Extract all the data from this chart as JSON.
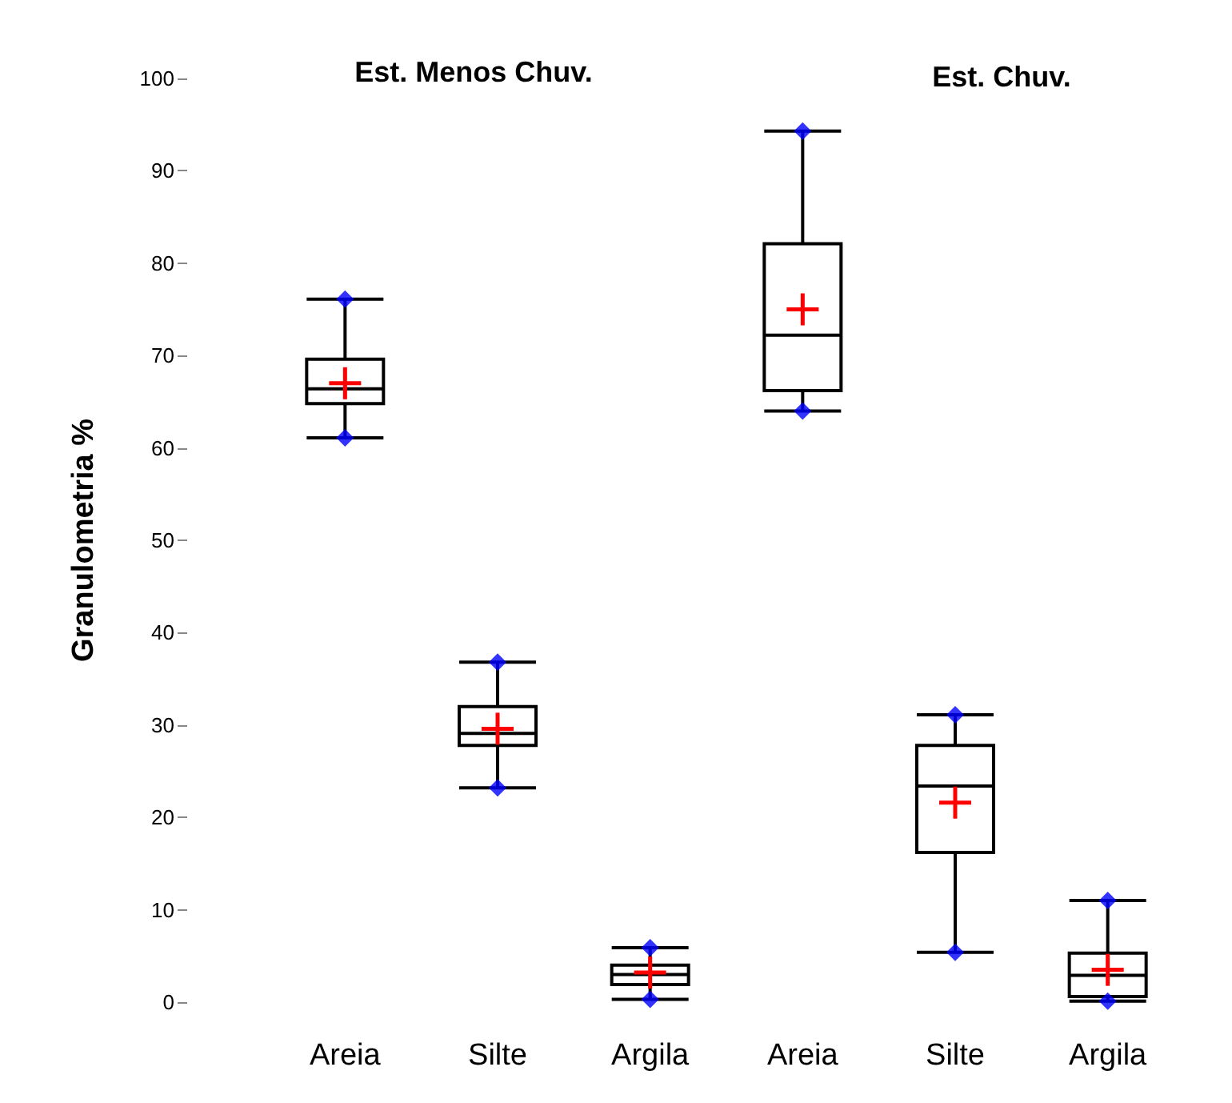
{
  "chart_data": [
    {
      "type": "box",
      "title": "Est. Menos Chuv.",
      "ylabel": "Granulometria %",
      "categories": [
        "Areia",
        "Silte",
        "Argila"
      ],
      "boxes": [
        {
          "low": 61.1,
          "q1": 64.8,
          "median": 66.4,
          "q3": 69.6,
          "high": 76.1,
          "mean": 67.0
        },
        {
          "low": 23.2,
          "q1": 27.8,
          "median": 29.1,
          "q3": 32.0,
          "high": 36.8,
          "mean": 29.6
        },
        {
          "low": 0.3,
          "q1": 1.9,
          "median": 3.0,
          "q3": 4.0,
          "high": 5.9,
          "mean": 3.2
        }
      ],
      "color": "#000000",
      "series": [
        {
          "type": "scatter",
          "color": "#0000ff",
          "marker": "diamond",
          "x": [
            "Areia",
            "Areia",
            "Silte",
            "Silte",
            "Argila",
            "Argila"
          ],
          "values": [
            61.1,
            76.1,
            23.2,
            36.8,
            0.3,
            5.9
          ]
        }
      ],
      "ylim": [
        0,
        100
      ],
      "yticks": [
        0,
        10,
        20,
        30,
        40,
        50,
        60,
        70,
        80,
        90,
        100
      ],
      "grid": false
    },
    {
      "type": "box",
      "title": "Est. Chuv.",
      "categories": [
        "Areia",
        "Silte",
        "Argila"
      ],
      "boxes": [
        {
          "low": 64.0,
          "q1": 66.2,
          "median": 72.2,
          "q3": 82.1,
          "high": 94.3,
          "mean": 75.0
        },
        {
          "low": 5.4,
          "q1": 16.2,
          "median": 23.4,
          "q3": 27.8,
          "high": 31.1,
          "mean": 21.6
        },
        {
          "low": 0.1,
          "q1": 0.6,
          "median": 2.9,
          "q3": 5.3,
          "high": 11.0,
          "mean": 3.5
        }
      ],
      "color": "#000000",
      "series": [
        {
          "type": "scatter",
          "color": "#0000ff",
          "marker": "diamond",
          "x": [
            "Areia",
            "Areia",
            "Silte",
            "Silte",
            "Argila",
            "Argila"
          ],
          "values": [
            64.0,
            94.3,
            5.4,
            31.1,
            0.1,
            11.0
          ]
        }
      ],
      "ylim": [
        0,
        100
      ],
      "yticks": [
        0,
        10,
        20,
        30,
        40,
        50,
        60,
        70,
        80,
        90,
        100
      ],
      "grid": false,
      "tick_labels": "x"
    }
  ]
}
